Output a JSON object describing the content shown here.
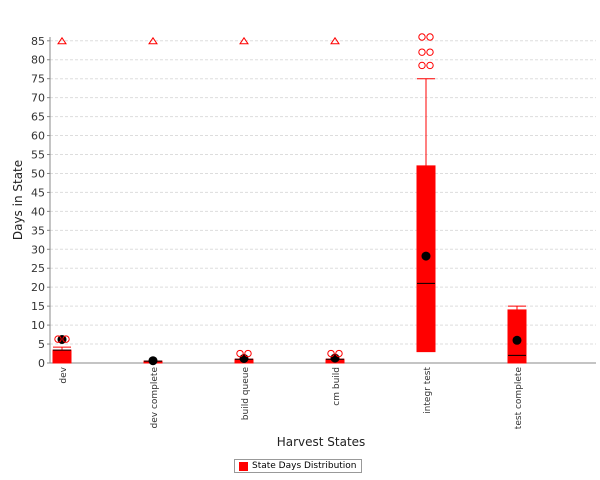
{
  "chart_data": {
    "type": "box",
    "xlabel": "Harvest States",
    "ylabel": "Days in State",
    "ylim": [
      0,
      86
    ],
    "yticks": [
      0,
      5,
      10,
      15,
      20,
      25,
      30,
      35,
      40,
      45,
      50,
      55,
      60,
      65,
      70,
      75,
      80,
      85
    ],
    "grid": true,
    "legend_position": "bottom",
    "series": [
      {
        "name": "State Days Distribution",
        "color": "#ff0000",
        "boxes": [
          {
            "category": "dev",
            "min": 0,
            "q1": 0,
            "median": 3.4,
            "q3": 3.4,
            "max": 4.2,
            "mean": 6.2,
            "outliers": [
              6.3,
              6.3
            ],
            "far_outliers": [
              85
            ]
          },
          {
            "category": "dev complete",
            "min": 0,
            "q1": 0,
            "median": 0.5,
            "q3": 0.5,
            "max": 0.5,
            "mean": 0.6,
            "outliers": [],
            "far_outliers": [
              85
            ]
          },
          {
            "category": "build queue",
            "min": 0,
            "q1": 0,
            "median": 1.0,
            "q3": 1.0,
            "max": 1.0,
            "mean": 1.2,
            "outliers": [
              2.5,
              2.5
            ],
            "far_outliers": [
              85
            ]
          },
          {
            "category": "cm build",
            "min": 0,
            "q1": 0,
            "median": 1.0,
            "q3": 1.0,
            "max": 1.0,
            "mean": 1.3,
            "outliers": [
              2.5,
              2.5
            ],
            "far_outliers": [
              85
            ]
          },
          {
            "category": "integr test",
            "min": 3,
            "q1": 3,
            "median": 21,
            "q3": 52,
            "max": 75,
            "mean": 28.2,
            "outliers": [
              78.5,
              78.5,
              82,
              82,
              86,
              86
            ],
            "far_outliers": []
          },
          {
            "category": "test complete",
            "min": 0,
            "q1": 0,
            "median": 2,
            "q3": 14,
            "max": 15,
            "mean": 6,
            "outliers": [],
            "far_outliers": []
          }
        ]
      }
    ]
  }
}
